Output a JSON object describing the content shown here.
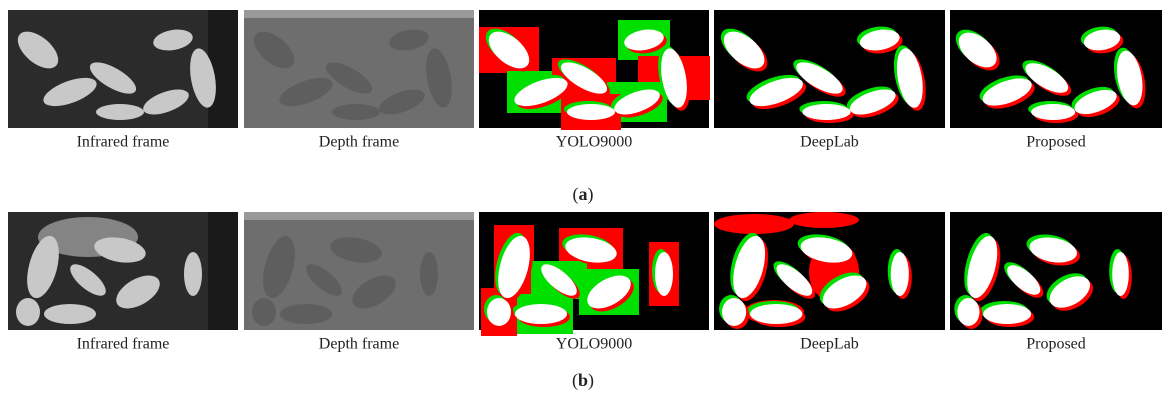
{
  "figure": {
    "rows": [
      {
        "panels": [
          "Infrared frame",
          "Depth frame",
          "YOLO9000",
          "DeepLab",
          "Proposed"
        ],
        "caption": [
          "(",
          "a",
          ")"
        ]
      },
      {
        "panels": [
          "Infrared frame",
          "Depth frame",
          "YOLO9000",
          "DeepLab",
          "Proposed"
        ],
        "caption": [
          "(",
          "b",
          ")"
        ]
      }
    ]
  }
}
